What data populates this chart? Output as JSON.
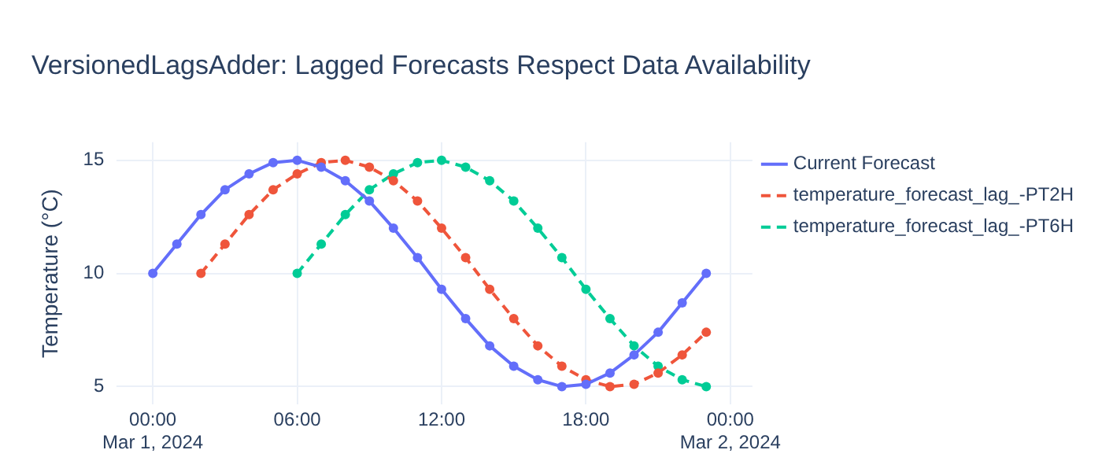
{
  "chart_data": {
    "type": "line",
    "title": "VersionedLagsAdder: Lagged Forecasts Respect Data Availability",
    "ylabel": "Temperature (°C)",
    "series": [
      {
        "name": "Current Forecast",
        "color": "#636efa",
        "line_style": "solid",
        "x": [
          "2024-03-01T00:00",
          "2024-03-01T01:00",
          "2024-03-01T02:00",
          "2024-03-01T03:00",
          "2024-03-01T04:00",
          "2024-03-01T05:00",
          "2024-03-01T06:00",
          "2024-03-01T07:00",
          "2024-03-01T08:00",
          "2024-03-01T09:00",
          "2024-03-01T10:00",
          "2024-03-01T11:00",
          "2024-03-01T12:00",
          "2024-03-01T13:00",
          "2024-03-01T14:00",
          "2024-03-01T15:00",
          "2024-03-01T16:00",
          "2024-03-01T17:00",
          "2024-03-01T18:00",
          "2024-03-01T19:00",
          "2024-03-01T20:00",
          "2024-03-01T21:00",
          "2024-03-01T22:00",
          "2024-03-01T23:00"
        ],
        "values": [
          10,
          11.3,
          12.6,
          13.7,
          14.4,
          14.9,
          15,
          14.7,
          14.1,
          13.2,
          12,
          10.7,
          9.3,
          8,
          6.8,
          5.9,
          5.3,
          5,
          5.1,
          5.6,
          6.4,
          7.4,
          8.7,
          10
        ]
      },
      {
        "name": "temperature_forecast_lag_-PT2H",
        "color": "#ef553b",
        "line_style": "dashed",
        "x": [
          "2024-03-01T02:00",
          "2024-03-01T03:00",
          "2024-03-01T04:00",
          "2024-03-01T05:00",
          "2024-03-01T06:00",
          "2024-03-01T07:00",
          "2024-03-01T08:00",
          "2024-03-01T09:00",
          "2024-03-01T10:00",
          "2024-03-01T11:00",
          "2024-03-01T12:00",
          "2024-03-01T13:00",
          "2024-03-01T14:00",
          "2024-03-01T15:00",
          "2024-03-01T16:00",
          "2024-03-01T17:00",
          "2024-03-01T18:00",
          "2024-03-01T19:00",
          "2024-03-01T20:00",
          "2024-03-01T21:00",
          "2024-03-01T22:00",
          "2024-03-01T23:00"
        ],
        "values": [
          10,
          11.3,
          12.6,
          13.7,
          14.4,
          14.9,
          15,
          14.7,
          14.1,
          13.2,
          12,
          10.7,
          9.3,
          8,
          6.8,
          5.9,
          5.3,
          5,
          5.1,
          5.6,
          6.4,
          7.4
        ]
      },
      {
        "name": "temperature_forecast_lag_-PT6H",
        "color": "#00cc96",
        "line_style": "dashed",
        "x": [
          "2024-03-01T06:00",
          "2024-03-01T07:00",
          "2024-03-01T08:00",
          "2024-03-01T09:00",
          "2024-03-01T10:00",
          "2024-03-01T11:00",
          "2024-03-01T12:00",
          "2024-03-01T13:00",
          "2024-03-01T14:00",
          "2024-03-01T15:00",
          "2024-03-01T16:00",
          "2024-03-01T17:00",
          "2024-03-01T18:00",
          "2024-03-01T19:00",
          "2024-03-01T20:00",
          "2024-03-01T21:00",
          "2024-03-01T22:00",
          "2024-03-01T23:00"
        ],
        "values": [
          10,
          11.3,
          12.6,
          13.7,
          14.4,
          14.9,
          15,
          14.7,
          14.1,
          13.2,
          12,
          10.7,
          9.3,
          8,
          6.8,
          5.9,
          5.3,
          5
        ]
      }
    ],
    "xlim": [
      "2024-02-29T22:30",
      "2024-03-02T00:55"
    ],
    "xticks": [
      {
        "value": "2024-03-01T00:00",
        "label": "00:00\nMar 1, 2024"
      },
      {
        "value": "2024-03-01T06:00",
        "label": "06:00"
      },
      {
        "value": "2024-03-01T12:00",
        "label": "12:00"
      },
      {
        "value": "2024-03-01T18:00",
        "label": "18:00"
      },
      {
        "value": "2024-03-02T00:00",
        "label": "00:00\nMar 2, 2024"
      }
    ],
    "ylim": [
      4.2,
      15.8
    ],
    "yticks": [
      5,
      10,
      15
    ],
    "grid": true,
    "legend": "top right",
    "marker": "circle"
  }
}
